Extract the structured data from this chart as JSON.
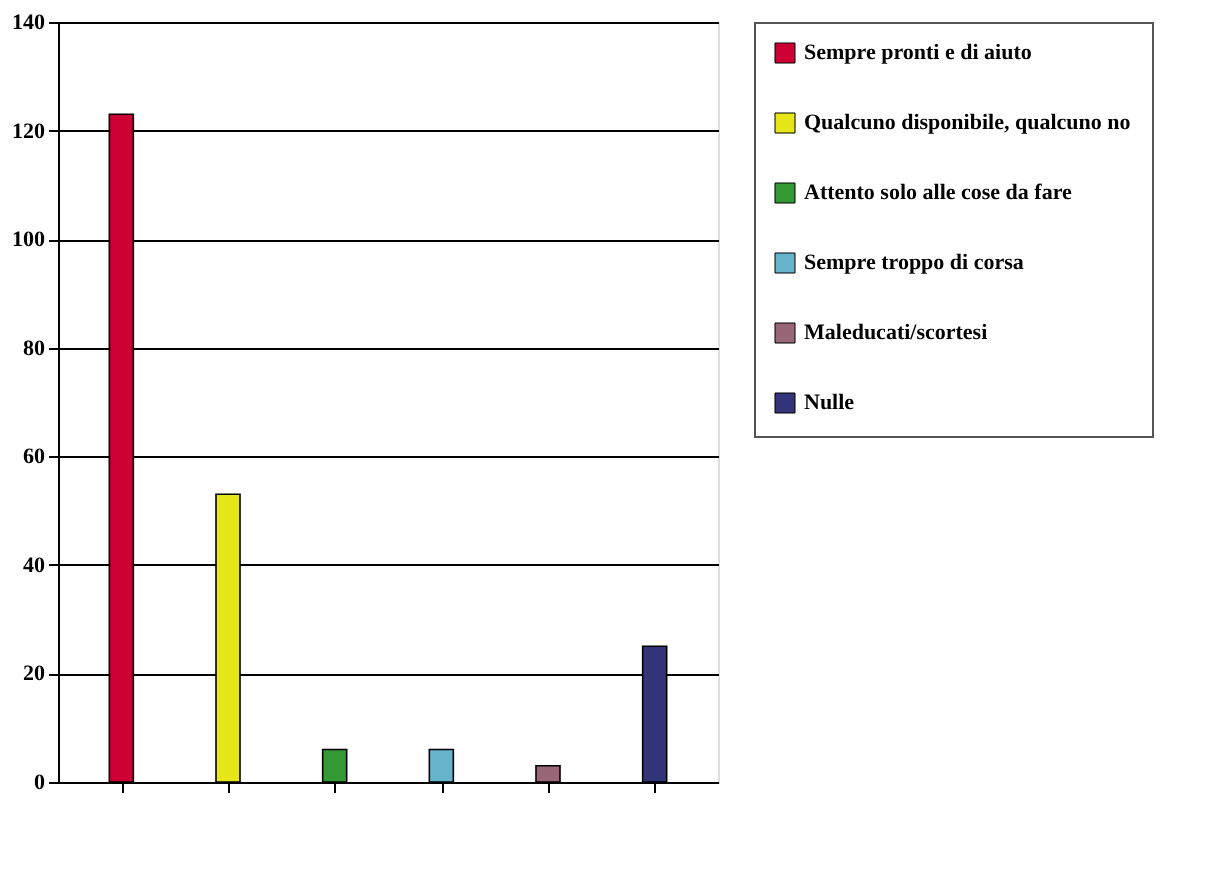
{
  "chart_data": {
    "type": "bar",
    "categories": [
      null,
      null,
      null,
      null,
      null,
      null
    ],
    "series": [
      {
        "name": "Sempre pronti e di aiuto",
        "color": "#cc0033",
        "values": [
          123,
          null,
          null,
          null,
          null,
          null
        ]
      },
      {
        "name": "Qualcuno disponibile, qualcuno no",
        "color": "#e6e619",
        "values": [
          null,
          53,
          null,
          null,
          null,
          null
        ]
      },
      {
        "name": "Attento solo alle cose da fare",
        "color": "#339933",
        "values": [
          null,
          null,
          6,
          null,
          null,
          null
        ]
      },
      {
        "name": "Sempre troppo di corsa",
        "color": "#66b3cc",
        "values": [
          null,
          null,
          null,
          6,
          null,
          null
        ]
      },
      {
        "name": "Maleducati/scortesi",
        "color": "#996677",
        "values": [
          null,
          null,
          null,
          null,
          3,
          null
        ]
      },
      {
        "name": "Nulle",
        "color": "#333377",
        "values": [
          null,
          null,
          null,
          null,
          null,
          25
        ]
      }
    ],
    "ylim": [
      0,
      140
    ],
    "yticks": [
      0,
      20,
      40,
      60,
      80,
      100,
      120,
      140
    ],
    "grid": "y",
    "legend": "right"
  }
}
